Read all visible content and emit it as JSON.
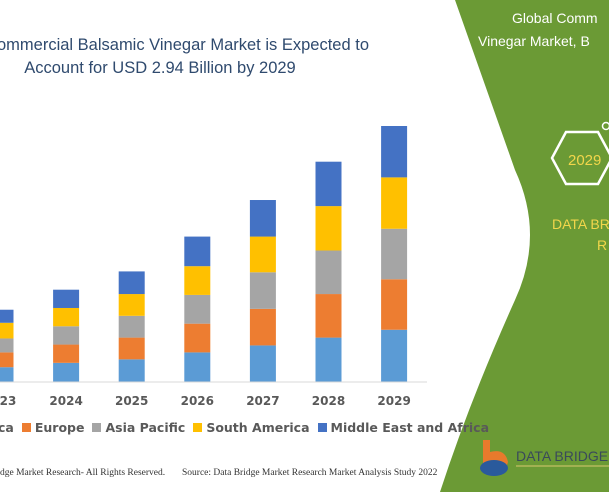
{
  "title": {
    "line1": "ommercial Balsamic Vinegar Market is Expected to",
    "line2": "Account for USD 2.94 Billion by 2029"
  },
  "chart_data": {
    "type": "bar",
    "stacked": true,
    "categories": [
      "23",
      "2024",
      "2025",
      "2026",
      "2027",
      "2028",
      "2029"
    ],
    "unit": "USD Billion",
    "series": [
      {
        "name": "ca",
        "color": "#5b9bd5",
        "values": [
          0.17,
          0.22,
          0.26,
          0.34,
          0.42,
          0.51,
          0.6
        ]
      },
      {
        "name": "Europe",
        "color": "#ed7d31",
        "values": [
          0.17,
          0.21,
          0.25,
          0.33,
          0.42,
          0.5,
          0.58
        ]
      },
      {
        "name": "Asia Pacific",
        "color": "#a5a5a5",
        "values": [
          0.16,
          0.21,
          0.25,
          0.33,
          0.42,
          0.5,
          0.58
        ]
      },
      {
        "name": "South America",
        "color": "#ffc000",
        "values": [
          0.18,
          0.21,
          0.25,
          0.33,
          0.41,
          0.51,
          0.59
        ]
      },
      {
        "name": "Middle East and Africa",
        "color": "#4472c4",
        "values": [
          0.15,
          0.21,
          0.26,
          0.34,
          0.42,
          0.51,
          0.59
        ]
      }
    ],
    "ylim": [
      0,
      2.94
    ],
    "grid": false,
    "legend_position": "bottom"
  },
  "footer": {
    "copyright": "dge Market Research- All Rights Reserved.",
    "source": "Source: Data Bridge Market Research Market Analysis Study 2022"
  },
  "panel": {
    "color": "#6b9a35",
    "heading_line1": "Global Comm",
    "heading_line2": "Vinegar Market, B",
    "hex_year": "2029",
    "brand_line1": "DATA BR",
    "brand_line2": "R",
    "brand_color": "#f2d64b",
    "logo_text": "DATA BRIDGE"
  }
}
